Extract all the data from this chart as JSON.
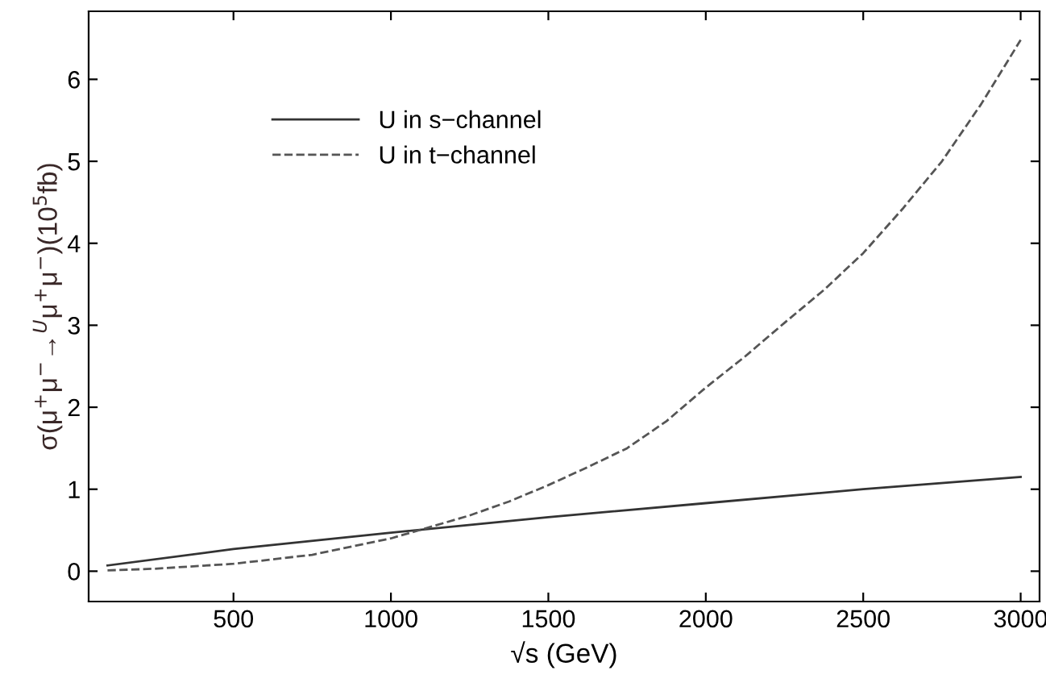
{
  "chart_data": {
    "type": "line",
    "xlabel": "√s (GeV)",
    "ylabel": "σ(μ$^{+}$μ$^{−}$→$^{U}$μ$^{+}$μ$^{−}$)(10$^{5}$fb)",
    "xlim": [
      40,
      3060
    ],
    "ylim": [
      -0.37,
      6.83
    ],
    "xticks": [
      500,
      1000,
      1500,
      2000,
      2500,
      3000
    ],
    "yticks": [
      0,
      1,
      2,
      3,
      4,
      5,
      6
    ],
    "grid": false,
    "legend": "top left",
    "marker": "none",
    "series": [
      {
        "name": "U in s−channel",
        "color": "#333333",
        "line_style": "solid",
        "x": [
          100,
          500,
          1000,
          1500,
          2000,
          2500,
          3000
        ],
        "values": [
          0.07,
          0.27,
          0.47,
          0.66,
          0.83,
          1.0,
          1.15
        ]
      },
      {
        "name": "U in t−channel",
        "color": "#555555",
        "line_style": "dashed",
        "x": [
          100,
          250,
          500,
          750,
          1000,
          1250,
          1375,
          1500,
          1625,
          1750,
          1875,
          2000,
          2125,
          2250,
          2375,
          2500,
          2625,
          2750,
          2875,
          3000
        ],
        "values": [
          0.01,
          0.03,
          0.09,
          0.2,
          0.4,
          0.68,
          0.85,
          1.05,
          1.27,
          1.5,
          1.83,
          2.24,
          2.62,
          3.03,
          3.43,
          3.88,
          4.42,
          5.0,
          5.7,
          6.48
        ]
      }
    ]
  }
}
